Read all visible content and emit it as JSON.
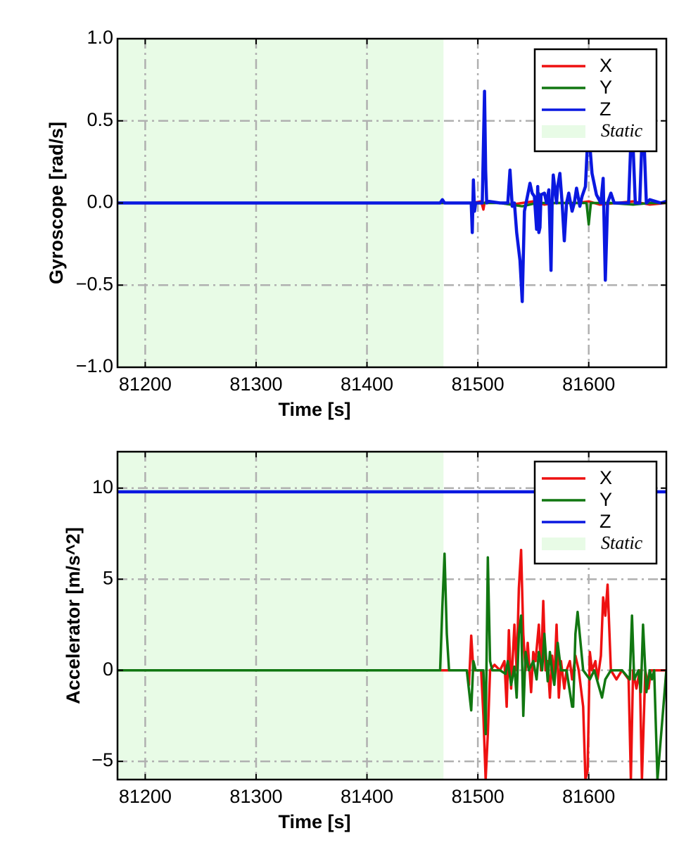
{
  "colors": {
    "x": "#ee1111",
    "y": "#117711",
    "z": "#0a18e0",
    "static": "#e8fbe6",
    "grid": "#b0b0b0"
  },
  "chart_data": [
    {
      "type": "line",
      "xlabel": "Time [s]",
      "ylabel": "Gyroscope [rad/s]",
      "xlim": [
        81175,
        81670
      ],
      "ylim": [
        -1.0,
        1.0
      ],
      "xticks": [
        81200,
        81300,
        81400,
        81500,
        81600
      ],
      "xtick_labels": [
        "81200",
        "81300",
        "81400",
        "81500",
        "81600"
      ],
      "yticks": [
        1.0,
        0.5,
        0.0,
        -0.5,
        -1.0
      ],
      "ytick_labels": [
        "1.0",
        "0.5",
        "0.0",
        "−0.5",
        "−1.0"
      ],
      "grid": true,
      "legend_position": "top-right",
      "legend": [
        "X",
        "Y",
        "Z",
        "Static"
      ],
      "static_region": [
        81175,
        81469
      ],
      "series": [
        {
          "name": "X",
          "x": [
            81175,
            81469,
            81495,
            81503,
            81505,
            81506,
            81508,
            81520,
            81530,
            81540,
            81550,
            81560,
            81570,
            81590,
            81600,
            81610,
            81625,
            81640,
            81655,
            81670
          ],
          "values": [
            0.0,
            0.0,
            0.0,
            0.01,
            -0.04,
            0.0,
            0.01,
            0.0,
            -0.01,
            0.0,
            0.01,
            -0.01,
            0.0,
            0.0,
            0.01,
            -0.01,
            0.0,
            0.01,
            -0.01,
            0.0
          ]
        },
        {
          "name": "Y",
          "x": [
            81175,
            81469,
            81500,
            81520,
            81540,
            81553,
            81555,
            81557,
            81570,
            81590,
            81598,
            81600,
            81602,
            81620,
            81640,
            81655,
            81670
          ],
          "values": [
            0.0,
            0.0,
            0.0,
            0.0,
            -0.02,
            0.0,
            0.06,
            0.0,
            0.0,
            0.0,
            0.0,
            -0.13,
            0.0,
            0.0,
            -0.01,
            0.0,
            0.0
          ]
        },
        {
          "name": "Z",
          "x": [
            81175,
            81466,
            81468,
            81470,
            81494,
            81495,
            81496,
            81497,
            81498,
            81504,
            81506,
            81507,
            81508,
            81510,
            81520,
            81527,
            81529,
            81531,
            81533,
            81535,
            81538,
            81540,
            81542,
            81545,
            81547,
            81549,
            81551,
            81553,
            81554,
            81555,
            81556,
            81557,
            81560,
            81562,
            81564,
            81566,
            81567,
            81568,
            81571,
            81572,
            81574,
            81576,
            81578,
            81580,
            81582,
            81585,
            81587,
            81589,
            81592,
            81594,
            81597,
            81599,
            81601,
            81603,
            81607,
            81611,
            81613,
            81615,
            81617,
            81620,
            81623,
            81630,
            81636,
            81638,
            81640,
            81642,
            81646,
            81648,
            81650,
            81652,
            81655,
            81660,
            81665,
            81670
          ],
          "values": [
            0.0,
            0.0,
            0.02,
            0.0,
            0.0,
            -0.18,
            0.14,
            -0.05,
            0.0,
            0.0,
            0.68,
            0.2,
            0.0,
            0.01,
            0.0,
            0.0,
            0.2,
            -0.02,
            0.0,
            -0.18,
            -0.35,
            -0.6,
            -0.05,
            0.05,
            0.12,
            0.06,
            0.04,
            -0.16,
            0.1,
            -0.18,
            -0.15,
            0.05,
            0.06,
            0.0,
            0.08,
            -0.41,
            0.0,
            0.17,
            0.0,
            0.1,
            0.18,
            0.0,
            -0.23,
            0.0,
            0.06,
            -0.05,
            0.0,
            0.09,
            -0.02,
            0.04,
            0.1,
            0.38,
            0.35,
            0.18,
            0.05,
            0.0,
            0.15,
            -0.47,
            0.0,
            0.06,
            0.0,
            0.0,
            0.0,
            0.38,
            0.35,
            0.0,
            0.0,
            0.38,
            0.36,
            0.0,
            0.02,
            0.01,
            0.0,
            0.01
          ]
        }
      ]
    },
    {
      "type": "line",
      "xlabel": "Time [s]",
      "ylabel": "Accelerator [m/s^2]",
      "xlim": [
        81175,
        81670
      ],
      "ylim": [
        -6.0,
        12.0
      ],
      "xticks": [
        81200,
        81300,
        81400,
        81500,
        81600
      ],
      "xtick_labels": [
        "81200",
        "81300",
        "81400",
        "81500",
        "81600"
      ],
      "yticks": [
        10,
        5,
        0,
        -5
      ],
      "ytick_labels": [
        "10",
        "5",
        "0",
        "−5"
      ],
      "grid": true,
      "legend_position": "top-right",
      "legend": [
        "X",
        "Y",
        "Z",
        "Static"
      ],
      "static_region": [
        81175,
        81469
      ],
      "series": [
        {
          "name": "X",
          "x": [
            81175,
            81469,
            81490,
            81492,
            81494,
            81496,
            81500,
            81503,
            81505,
            81507,
            81509,
            81511,
            81515,
            81520,
            81524,
            81526,
            81528,
            81530,
            81533,
            81535,
            81537,
            81539,
            81541,
            81543,
            81545,
            81548,
            81550,
            81552,
            81555,
            81557,
            81559,
            81561,
            81563,
            81565,
            81567,
            81569,
            81571,
            81573,
            81575,
            81578,
            81580,
            81583,
            81585,
            81588,
            81591,
            81595,
            81597,
            81599,
            81601,
            81603,
            81606,
            81608,
            81611,
            81613,
            81615,
            81617,
            81620,
            81625,
            81630,
            81636,
            81638,
            81640,
            81643,
            81646,
            81648,
            81651,
            81654,
            81656,
            81660,
            81670
          ],
          "values": [
            0.0,
            0.0,
            0.0,
            -0.8,
            1.9,
            0.0,
            0.0,
            0.0,
            -2.5,
            -6.0,
            -3.5,
            0.0,
            0.3,
            0.0,
            0.5,
            -2.0,
            2.2,
            -1.0,
            2.5,
            0.0,
            4.5,
            6.6,
            2.0,
            0.0,
            1.5,
            -1.2,
            1.0,
            0.5,
            2.5,
            0.0,
            3.8,
            0.0,
            0.5,
            -1.5,
            0.8,
            -0.5,
            2.5,
            -1.5,
            0.5,
            -1.0,
            0.0,
            0.5,
            -0.5,
            0.8,
            0.0,
            -2.0,
            -6.0,
            -5.5,
            1.0,
            0.0,
            0.5,
            -0.5,
            0.8,
            4.0,
            3.0,
            4.7,
            0.0,
            -0.5,
            0.0,
            -0.5,
            -6.0,
            0.0,
            -1.0,
            0.0,
            -6.0,
            0.0,
            -1.0,
            0.0,
            0.0,
            0.0
          ]
        },
        {
          "name": "Y",
          "x": [
            81175,
            81466,
            81468,
            81470,
            81472,
            81474,
            81480,
            81490,
            81494,
            81496,
            81498,
            81500,
            81505,
            81507,
            81509,
            81511,
            81513,
            81520,
            81525,
            81527,
            81530,
            81533,
            81535,
            81537,
            81539,
            81541,
            81543,
            81546,
            81550,
            81553,
            81555,
            81558,
            81560,
            81563,
            81565,
            81567,
            81569,
            81572,
            81575,
            81580,
            81585,
            81586,
            81588,
            81590,
            81595,
            81601,
            81605,
            81612,
            81615,
            81620,
            81630,
            81637,
            81639,
            81641,
            81645,
            81647,
            81649,
            81652,
            81655,
            81657,
            81659,
            81662,
            81670
          ],
          "values": [
            0.0,
            0.0,
            3.5,
            6.4,
            2.0,
            0.0,
            0.0,
            0.0,
            -2.2,
            0.5,
            0.0,
            0.0,
            0.0,
            -3.5,
            6.2,
            0.5,
            0.0,
            0.0,
            -0.2,
            0.5,
            -0.8,
            0.2,
            -1.5,
            2.0,
            3.0,
            -2.5,
            1.0,
            0.0,
            0.5,
            -0.5,
            1.0,
            0.0,
            2.0,
            -0.6,
            1.0,
            0.0,
            -0.8,
            1.5,
            0.0,
            0.0,
            -2.0,
            -2.0,
            2.0,
            3.2,
            0.0,
            -0.5,
            0.0,
            -1.5,
            -0.5,
            0.0,
            0.0,
            -0.5,
            3.0,
            -0.5,
            0.0,
            -1.2,
            2.5,
            -1.2,
            0.0,
            -0.5,
            0.0,
            -6.0,
            0.0
          ]
        },
        {
          "name": "Z",
          "x": [
            81175,
            81670
          ],
          "values": [
            9.8,
            9.8
          ]
        }
      ]
    }
  ]
}
